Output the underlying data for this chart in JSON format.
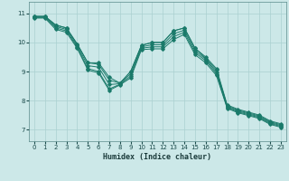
{
  "xlabel": "Humidex (Indice chaleur)",
  "xlim": [
    -0.5,
    23.5
  ],
  "ylim": [
    6.6,
    11.4
  ],
  "yticks": [
    7,
    8,
    9,
    10,
    11
  ],
  "xticks": [
    0,
    1,
    2,
    3,
    4,
    5,
    6,
    7,
    8,
    9,
    10,
    11,
    12,
    13,
    14,
    15,
    16,
    17,
    18,
    19,
    20,
    21,
    22,
    23
  ],
  "background_color": "#cce8e8",
  "grid_color": "#aad0d0",
  "line_color": "#1a7a6a",
  "lines": [
    [
      10.9,
      10.9,
      10.6,
      10.5,
      9.95,
      9.3,
      9.3,
      8.8,
      8.6,
      9.0,
      9.9,
      10.0,
      10.0,
      10.4,
      10.5,
      9.8,
      9.5,
      9.1,
      7.85,
      7.7,
      7.6,
      7.5,
      7.3,
      7.2
    ],
    [
      10.9,
      10.9,
      10.6,
      10.5,
      9.95,
      9.3,
      9.25,
      8.7,
      8.6,
      9.0,
      9.9,
      10.0,
      10.0,
      10.4,
      10.5,
      9.8,
      9.45,
      9.05,
      7.82,
      7.67,
      7.57,
      7.47,
      7.27,
      7.17
    ],
    [
      10.88,
      10.88,
      10.55,
      10.45,
      9.9,
      9.2,
      9.15,
      8.55,
      8.58,
      8.92,
      9.85,
      9.92,
      9.92,
      10.3,
      10.42,
      9.72,
      9.42,
      8.98,
      7.79,
      7.64,
      7.54,
      7.44,
      7.24,
      7.14
    ],
    [
      10.86,
      10.86,
      10.5,
      10.4,
      9.85,
      9.1,
      9.0,
      8.4,
      8.56,
      8.84,
      9.8,
      9.85,
      9.85,
      10.2,
      10.35,
      9.65,
      9.37,
      8.92,
      7.76,
      7.61,
      7.51,
      7.41,
      7.21,
      7.11
    ],
    [
      10.84,
      10.84,
      10.45,
      10.35,
      9.8,
      9.05,
      8.95,
      8.35,
      8.54,
      8.78,
      9.75,
      9.78,
      9.78,
      10.1,
      10.28,
      9.58,
      9.3,
      8.86,
      7.73,
      7.58,
      7.48,
      7.38,
      7.18,
      7.08
    ]
  ]
}
